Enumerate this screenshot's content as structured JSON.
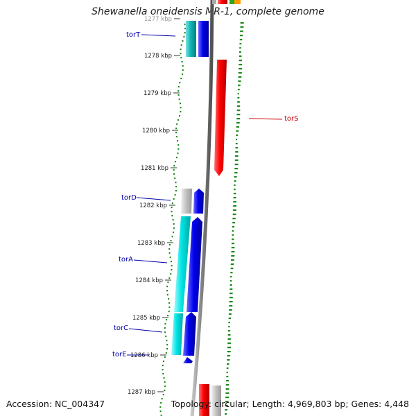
{
  "header": {
    "title": "Shewanella oneidensis MR-1, complete genome"
  },
  "footer": {
    "accession": "Accession: NC_004347",
    "summary": "Topology: circular; Length: 4,969,803 bp; Genes: 4,448"
  },
  "scale": {
    "ticks": [
      "1277 kbp",
      "1278 kbp",
      "1279 kbp",
      "1280 kbp",
      "1281 kbp",
      "1282 kbp",
      "1283 kbp",
      "1284 kbp",
      "1285 kbp",
      "1286 kbp",
      "1287 kbp"
    ]
  },
  "genes": [
    {
      "name": "torT",
      "strand": "plus",
      "color": "#0000ee",
      "label_side": "left"
    },
    {
      "name": "torS",
      "strand": "minus",
      "color": "#ff0000",
      "label_side": "right"
    },
    {
      "name": "torD",
      "strand": "plus",
      "color": "#0000ee",
      "label_side": "left"
    },
    {
      "name": "torA",
      "strand": "plus",
      "color": "#0000ee",
      "label_side": "left"
    },
    {
      "name": "torC",
      "strand": "plus",
      "color": "#0000ee",
      "label_side": "left"
    },
    {
      "name": "torE",
      "strand": "plus",
      "color": "#0000ee",
      "label_side": "left"
    }
  ],
  "colors": {
    "plus_strand": "#0000ee",
    "minus_strand": "#ff0000",
    "cog_cyan": "#00e5e5",
    "unclassified": "#bbbbbb",
    "backbone": "#808080",
    "gc_skew": "#1a8a1a",
    "label_left": "#0000aa",
    "label_right": "#cc0000"
  }
}
